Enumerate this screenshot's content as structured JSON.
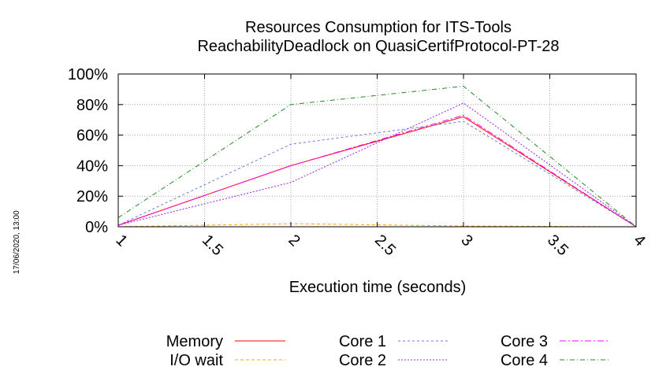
{
  "chart_data": {
    "type": "line",
    "title_lines": [
      "Resources Consumption for ITS-Tools",
      "ReachabilityDeadlock on QuasiCertifProtocol-PT-28"
    ],
    "xlabel": "Execution time (seconds)",
    "ylabel": "",
    "x": [
      1,
      2,
      3,
      4
    ],
    "xlim": [
      1,
      4
    ],
    "ylim": [
      0,
      100
    ],
    "x_ticks": [
      "1",
      "1.5",
      "2",
      "2.5",
      "3",
      "3.5",
      "4"
    ],
    "x_tick_values": [
      1,
      1.5,
      2,
      2.5,
      3,
      3.5,
      4
    ],
    "y_ticks": [
      "0%",
      "20%",
      "40%",
      "60%",
      "80%",
      "100%"
    ],
    "y_tick_values": [
      0,
      20,
      40,
      60,
      80,
      100
    ],
    "grid": true,
    "legend_position": "bottom",
    "series": [
      {
        "name": "Memory",
        "color": "#ff0000",
        "dash": "",
        "values": [
          1,
          40,
          72,
          0
        ]
      },
      {
        "name": "I/O wait",
        "color": "#ffa500",
        "dash": "4,3",
        "values": [
          0,
          2,
          0.5,
          0
        ]
      },
      {
        "name": "Core 1",
        "color": "#6a7fd4",
        "dash": "3,3",
        "values": [
          1,
          54,
          69,
          0
        ]
      },
      {
        "name": "Core 2",
        "color": "#a020f0",
        "dash": "2,2",
        "values": [
          1,
          29,
          81,
          0
        ]
      },
      {
        "name": "Core 3",
        "color": "#ff00ff",
        "dash": "8,3,2,3",
        "values": [
          1,
          40,
          73,
          0
        ]
      },
      {
        "name": "Core 4",
        "color": "#228b22",
        "dash": "6,3,1,3",
        "values": [
          6,
          80,
          92,
          0
        ]
      }
    ]
  },
  "side_stamp": "17/06/2020, 13:00"
}
